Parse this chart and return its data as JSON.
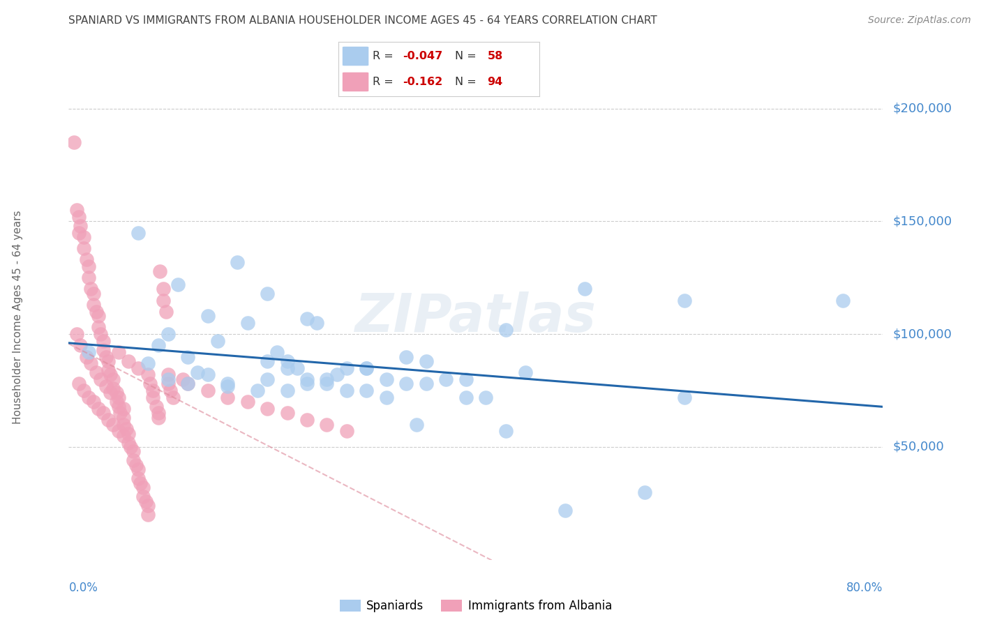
{
  "title": "SPANIARD VS IMMIGRANTS FROM ALBANIA HOUSEHOLDER INCOME AGES 45 - 64 YEARS CORRELATION CHART",
  "source": "Source: ZipAtlas.com",
  "ylabel": "Householder Income Ages 45 - 64 years",
  "ytick_values": [
    50000,
    100000,
    150000,
    200000
  ],
  "ymin": 0,
  "ymax": 215000,
  "xmin": 0.0,
  "xmax": 0.82,
  "legend_blue_r": "-0.047",
  "legend_blue_n": "58",
  "legend_pink_r": "-0.162",
  "legend_pink_n": "94",
  "legend_blue_label": "Spaniards",
  "legend_pink_label": "Immigrants from Albania",
  "watermark": "ZIPatlas",
  "blue_scatter_color": "#aaccee",
  "pink_scatter_color": "#f0a0b8",
  "blue_line_color": "#2266aa",
  "pink_line_color": "#dd8899",
  "axis_label_color": "#4488cc",
  "grid_color": "#cccccc",
  "title_color": "#444444",
  "source_color": "#888888",
  "spaniards_x": [
    0.02,
    0.07,
    0.1,
    0.12,
    0.14,
    0.15,
    0.17,
    0.2,
    0.22,
    0.24,
    0.08,
    0.09,
    0.11,
    0.13,
    0.16,
    0.19,
    0.21,
    0.23,
    0.25,
    0.27,
    0.1,
    0.12,
    0.14,
    0.16,
    0.18,
    0.2,
    0.22,
    0.24,
    0.26,
    0.28,
    0.3,
    0.32,
    0.34,
    0.36,
    0.38,
    0.4,
    0.42,
    0.44,
    0.46,
    0.5,
    0.28,
    0.3,
    0.32,
    0.34,
    0.36,
    0.4,
    0.44,
    0.52,
    0.58,
    0.62,
    0.2,
    0.22,
    0.24,
    0.26,
    0.3,
    0.35,
    0.62,
    0.78
  ],
  "spaniards_y": [
    92000,
    145000,
    100000,
    78000,
    108000,
    97000,
    132000,
    118000,
    88000,
    107000,
    87000,
    95000,
    122000,
    83000,
    77000,
    75000,
    92000,
    85000,
    105000,
    82000,
    80000,
    90000,
    82000,
    78000,
    105000,
    88000,
    85000,
    78000,
    80000,
    85000,
    85000,
    80000,
    78000,
    88000,
    80000,
    80000,
    72000,
    57000,
    83000,
    22000,
    75000,
    75000,
    72000,
    90000,
    78000,
    72000,
    102000,
    120000,
    30000,
    72000,
    80000,
    75000,
    80000,
    78000,
    85000,
    60000,
    115000,
    115000
  ],
  "albania_x": [
    0.005,
    0.008,
    0.01,
    0.01,
    0.012,
    0.015,
    0.015,
    0.018,
    0.02,
    0.02,
    0.022,
    0.025,
    0.025,
    0.028,
    0.03,
    0.03,
    0.032,
    0.035,
    0.035,
    0.038,
    0.04,
    0.04,
    0.042,
    0.045,
    0.045,
    0.048,
    0.05,
    0.05,
    0.052,
    0.055,
    0.055,
    0.058,
    0.06,
    0.06,
    0.062,
    0.065,
    0.065,
    0.068,
    0.07,
    0.07,
    0.072,
    0.075,
    0.075,
    0.078,
    0.08,
    0.08,
    0.082,
    0.085,
    0.085,
    0.088,
    0.09,
    0.09,
    0.092,
    0.095,
    0.095,
    0.098,
    0.1,
    0.1,
    0.102,
    0.105,
    0.008,
    0.012,
    0.018,
    0.022,
    0.028,
    0.032,
    0.038,
    0.042,
    0.048,
    0.055,
    0.01,
    0.015,
    0.02,
    0.025,
    0.03,
    0.035,
    0.04,
    0.045,
    0.05,
    0.055,
    0.115,
    0.12,
    0.14,
    0.16,
    0.18,
    0.2,
    0.22,
    0.24,
    0.26,
    0.28,
    0.05,
    0.06,
    0.07,
    0.08
  ],
  "albania_y": [
    185000,
    155000,
    152000,
    145000,
    148000,
    143000,
    138000,
    133000,
    130000,
    125000,
    120000,
    118000,
    113000,
    110000,
    108000,
    103000,
    100000,
    97000,
    93000,
    90000,
    88000,
    84000,
    82000,
    80000,
    76000,
    74000,
    72000,
    68000,
    65000,
    63000,
    60000,
    58000,
    56000,
    52000,
    50000,
    48000,
    44000,
    42000,
    40000,
    36000,
    34000,
    32000,
    28000,
    26000,
    24000,
    20000,
    78000,
    75000,
    72000,
    68000,
    65000,
    63000,
    128000,
    120000,
    115000,
    110000,
    82000,
    78000,
    75000,
    72000,
    100000,
    95000,
    90000,
    87000,
    83000,
    80000,
    77000,
    74000,
    70000,
    67000,
    78000,
    75000,
    72000,
    70000,
    67000,
    65000,
    62000,
    60000,
    57000,
    55000,
    80000,
    78000,
    75000,
    72000,
    70000,
    67000,
    65000,
    62000,
    60000,
    57000,
    92000,
    88000,
    85000,
    82000
  ]
}
